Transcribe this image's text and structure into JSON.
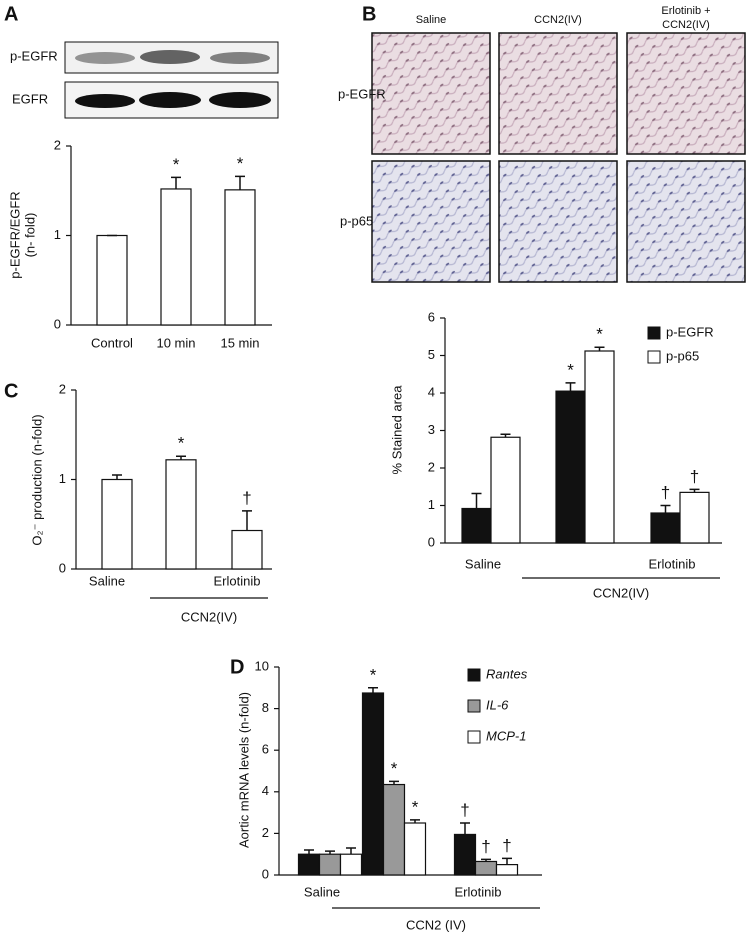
{
  "panel_labels": [
    "A",
    "B",
    "C",
    "D"
  ],
  "blot": {
    "rows": [
      "p-EGFR",
      "EGFR"
    ]
  },
  "micrographs": {
    "columns": [
      [
        "Saline"
      ],
      [
        "CCN2(IV)"
      ],
      [
        "Erlotinib +",
        "CCN2(IV)"
      ]
    ],
    "rows": [
      "p-EGFR",
      "p-p65"
    ]
  },
  "chart_data": [
    {
      "type": "bar",
      "ylabel": [
        "p-EGFR/EGFR",
        "(n- fold)"
      ],
      "categories": [
        "Control",
        "10  min",
        "15  min"
      ],
      "values": [
        1.0,
        1.52,
        1.51
      ],
      "errors": [
        0.0,
        0.13,
        0.15
      ],
      "markers": [
        null,
        "*",
        "*"
      ],
      "color": "#ffffff",
      "ylim": [
        0,
        2
      ],
      "yticks": [
        0,
        1,
        2
      ]
    },
    {
      "type": "bar",
      "ylabel": [
        "% Stained area"
      ],
      "categories": [
        "Saline",
        null,
        "Erlotinib"
      ],
      "group_label": "CCN2(IV)",
      "series": [
        {
          "name": "p-EGFR",
          "color": "#111111",
          "values": [
            0.92,
            4.05,
            0.8
          ],
          "errors": [
            0.4,
            0.22,
            0.2
          ],
          "markers": [
            null,
            "*",
            "†"
          ]
        },
        {
          "name": "p-p65",
          "color": "#ffffff",
          "values": [
            2.82,
            5.12,
            1.35
          ],
          "errors": [
            0.08,
            0.1,
            0.08
          ],
          "markers": [
            null,
            "*",
            "†"
          ]
        }
      ],
      "ylim": [
        0,
        6
      ],
      "yticks": [
        0,
        1,
        2,
        3,
        4,
        5,
        6
      ],
      "legend": "top-right"
    },
    {
      "type": "bar",
      "ylabel": [
        "O₂⁻ production (n-fold)"
      ],
      "categories": [
        "Saline",
        null,
        "Erlotinib"
      ],
      "group_label": "CCN2(IV)",
      "values": [
        1.0,
        1.22,
        0.43
      ],
      "errors": [
        0.05,
        0.04,
        0.22
      ],
      "markers": [
        null,
        "*",
        "†"
      ],
      "color": "#ffffff",
      "ylim": [
        0,
        2
      ],
      "yticks": [
        0,
        1,
        2
      ]
    },
    {
      "type": "bar",
      "ylabel": [
        "Aortic mRNA levels (n-fold)"
      ],
      "categories": [
        "Saline",
        null,
        "Erlotinib"
      ],
      "group_label": "CCN2 (IV)",
      "series": [
        {
          "name": "Rantes",
          "color": "#111111",
          "values": [
            1.0,
            8.75,
            1.95
          ],
          "errors": [
            0.2,
            0.25,
            0.55
          ],
          "markers": [
            null,
            "*",
            "†"
          ]
        },
        {
          "name": "IL-6",
          "color": "#999999",
          "values": [
            1.0,
            4.35,
            0.65
          ],
          "errors": [
            0.15,
            0.15,
            0.1
          ],
          "markers": [
            null,
            "*",
            "†"
          ]
        },
        {
          "name": "MCP-1",
          "color": "#ffffff",
          "values": [
            1.0,
            2.5,
            0.5
          ],
          "errors": [
            0.3,
            0.15,
            0.3
          ],
          "markers": [
            null,
            "*",
            "†"
          ]
        }
      ],
      "ylim": [
        0,
        10
      ],
      "yticks": [
        0,
        2,
        4,
        6,
        8,
        10
      ],
      "legend": "top-right",
      "legend_italic": true
    }
  ]
}
